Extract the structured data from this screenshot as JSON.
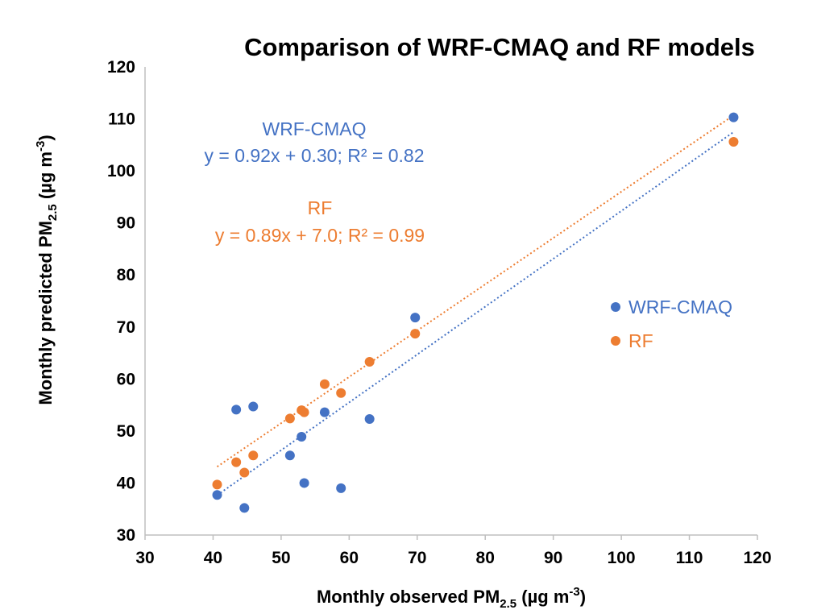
{
  "chart_data": {
    "type": "scatter",
    "title": "Comparison of WRF-CMAQ and RF models",
    "xlabel": {
      "prefix": "Monthly observed PM",
      "sub": "2.5",
      "mid": " (µg m",
      "sup": "-3",
      "suffix": ")"
    },
    "ylabel": {
      "prefix": "Monthly predicted PM",
      "sub": "2.5",
      "mid": " (µg m",
      "sup": "-3",
      "suffix": ")"
    },
    "xlim": [
      30,
      120
    ],
    "ylim": [
      30,
      120
    ],
    "xticks": [
      "30",
      "40",
      "50",
      "60",
      "70",
      "80",
      "90",
      "100",
      "110",
      "120"
    ],
    "yticks": [
      "30",
      "40",
      "50",
      "60",
      "70",
      "80",
      "90",
      "100",
      "110",
      "120"
    ],
    "grid": false,
    "legend_position": "right",
    "series": [
      {
        "name": "WRF-CMAQ",
        "color": "#4472C4",
        "x": [
          40.6,
          43.4,
          44.6,
          45.9,
          51.3,
          53.0,
          53.4,
          56.4,
          58.8,
          63.0,
          69.7,
          116.5
        ],
        "y": [
          37.7,
          54.1,
          35.2,
          54.7,
          45.3,
          48.9,
          40.0,
          53.6,
          39.0,
          52.3,
          71.8,
          110.3
        ],
        "trendline": {
          "slope": 0.92,
          "intercept": 0.3,
          "x_range": [
            40.6,
            116.5
          ],
          "style": "dotted"
        }
      },
      {
        "name": "RF",
        "color": "#ED7D31",
        "x": [
          40.6,
          43.4,
          44.6,
          45.9,
          51.3,
          53.0,
          53.4,
          56.4,
          58.8,
          63.0,
          69.7,
          116.5
        ],
        "y": [
          39.7,
          44.0,
          42.0,
          45.3,
          52.4,
          54.0,
          53.6,
          59.0,
          57.3,
          63.3,
          68.7,
          105.6
        ],
        "trendline": {
          "slope": 0.89,
          "intercept": 7.0,
          "x_range": [
            40.6,
            116.5
          ],
          "style": "dotted"
        }
      }
    ],
    "annotations": [
      {
        "series": "WRF-CMAQ",
        "color": "#4472C4",
        "line1": "WRF-CMAQ",
        "line2": "y = 0.92x + 0.30; R² = 0.82"
      },
      {
        "series": "RF",
        "color": "#ED7D31",
        "line1": "RF",
        "line2": "y = 0.89x + 7.0; R² = 0.99"
      }
    ]
  }
}
